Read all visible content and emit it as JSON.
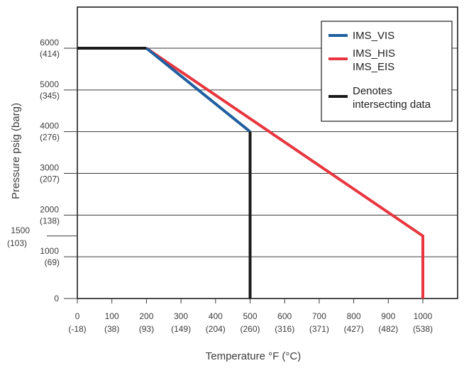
{
  "chart_data": {
    "type": "line",
    "title": "",
    "xlabel": "Temperature °F (°C)",
    "ylabel": "Pressure psig (barg)",
    "xlim": [
      0,
      1100
    ],
    "ylim": [
      0,
      7000
    ],
    "grid": "horizontal",
    "legend_position": "top-right",
    "x_ticks": [
      {
        "value": 0,
        "label": "0",
        "sub": "(-18)"
      },
      {
        "value": 100,
        "label": "100",
        "sub": "(38)"
      },
      {
        "value": 200,
        "label": "200",
        "sub": "(93)"
      },
      {
        "value": 300,
        "label": "300",
        "sub": "(149)"
      },
      {
        "value": 400,
        "label": "400",
        "sub": "(204)"
      },
      {
        "value": 500,
        "label": "500",
        "sub": "(260)"
      },
      {
        "value": 600,
        "label": "600",
        "sub": "(316)"
      },
      {
        "value": 700,
        "label": "700",
        "sub": "(371)"
      },
      {
        "value": 800,
        "label": "800",
        "sub": "(427)"
      },
      {
        "value": 900,
        "label": "900",
        "sub": "(482)"
      },
      {
        "value": 1000,
        "label": "1000",
        "sub": "(538)"
      }
    ],
    "y_ticks": [
      {
        "value": 0,
        "label": "0",
        "sub": ""
      },
      {
        "value": 1000,
        "label": "1000",
        "sub": "(69)"
      },
      {
        "value": 1500,
        "label": "1500",
        "sub": "(103)"
      },
      {
        "value": 2000,
        "label": "2000",
        "sub": "(138)"
      },
      {
        "value": 3000,
        "label": "3000",
        "sub": "(207)"
      },
      {
        "value": 4000,
        "label": "4000",
        "sub": "(276)"
      },
      {
        "value": 5000,
        "label": "5000",
        "sub": "(345)"
      },
      {
        "value": 6000,
        "label": "6000",
        "sub": "(414)"
      }
    ],
    "series": [
      {
        "name": "IMS_HIS\nIMS_EIS",
        "color": "#e8363f",
        "x": [
          200,
          1000,
          1000
        ],
        "y": [
          6000,
          1500,
          0
        ]
      },
      {
        "name": "IMS_VIS",
        "color": "#1f5fa0",
        "x": [
          200,
          500
        ],
        "y": [
          6000,
          4000
        ]
      },
      {
        "name": "Denotes\nintersecting data",
        "color": "#1a1a1a",
        "x": [
          0,
          200,
          200,
          500,
          500
        ],
        "y": [
          6000,
          6000,
          6000,
          4000,
          0
        ],
        "segments": [
          [
            0,
            1
          ],
          [
            3,
            4
          ]
        ]
      }
    ],
    "legend": [
      {
        "label": [
          "IMS_VIS"
        ],
        "color": "#1f5fa0"
      },
      {
        "label": [
          "IMS_HIS",
          "IMS_EIS"
        ],
        "color": "#e8363f"
      },
      {
        "label": [
          "Denotes",
          "intersecting data"
        ],
        "color": "#1a1a1a"
      }
    ]
  }
}
